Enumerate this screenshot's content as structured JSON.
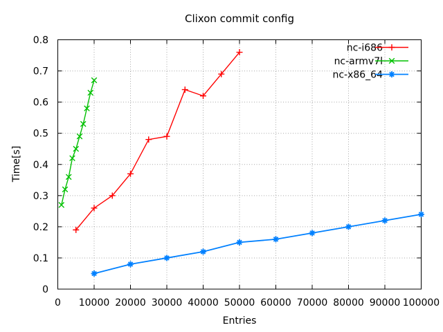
{
  "chart_data": {
    "type": "line",
    "title": "Clixon commit config",
    "xlabel": "Entries",
    "ylabel": "Time[s]",
    "xlim": [
      0,
      100000
    ],
    "ylim": [
      0,
      0.8
    ],
    "xticks": [
      0,
      10000,
      20000,
      30000,
      40000,
      50000,
      60000,
      70000,
      80000,
      90000,
      100000
    ],
    "xtick_labels": [
      "0",
      "10000",
      "20000",
      "30000",
      "40000",
      "50000",
      "60000",
      "70000",
      "80000",
      "90000",
      "100000"
    ],
    "yticks": [
      0,
      0.1,
      0.2,
      0.3,
      0.4,
      0.5,
      0.6,
      0.7,
      0.8
    ],
    "ytick_labels": [
      "0",
      "0.1",
      "0.2",
      "0.3",
      "0.4",
      "0.5",
      "0.6",
      "0.7",
      "0.8"
    ],
    "grid": true,
    "legend_position": "top-right-inside",
    "colors": {
      "background": "#ffffff",
      "axis": "#000000",
      "grid": "#a6a6a6",
      "text": "#000000"
    },
    "series": [
      {
        "name": "nc-i686",
        "color": "#ff0000",
        "marker": "plus",
        "x": [
          5000,
          10000,
          15000,
          20000,
          25000,
          30000,
          35000,
          40000,
          45000,
          50000
        ],
        "y": [
          0.19,
          0.26,
          0.3,
          0.37,
          0.48,
          0.49,
          0.64,
          0.62,
          0.69,
          0.76
        ]
      },
      {
        "name": "nc-armv7l",
        "color": "#00c000",
        "marker": "cross",
        "x": [
          1000,
          2000,
          3000,
          4000,
          5000,
          6000,
          7000,
          8000,
          9000,
          10000
        ],
        "y": [
          0.27,
          0.32,
          0.36,
          0.42,
          0.45,
          0.49,
          0.53,
          0.58,
          0.63,
          0.67
        ]
      },
      {
        "name": "nc-x86_64",
        "color": "#0080ff",
        "marker": "asterisk",
        "x": [
          10000,
          20000,
          30000,
          40000,
          50000,
          60000,
          70000,
          80000,
          90000,
          100000
        ],
        "y": [
          0.05,
          0.08,
          0.1,
          0.12,
          0.15,
          0.16,
          0.18,
          0.2,
          0.22,
          0.24
        ]
      }
    ]
  }
}
